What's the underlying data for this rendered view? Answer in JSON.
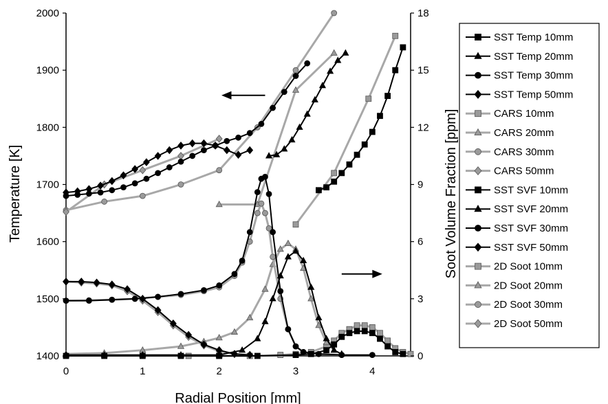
{
  "chart_data": {
    "type": "line",
    "xlabel": "Radial Position [mm]",
    "ylabel_left": "Temperature [K]",
    "ylabel_right": "Soot Volume Fraction [ppm]",
    "xlim": [
      0,
      4.5
    ],
    "ylim_left": [
      1400,
      2000
    ],
    "ylim_right": [
      0,
      18
    ],
    "x_ticks": [
      "0",
      "1",
      "2",
      "3",
      "4"
    ],
    "y_left_ticks": [
      "1400",
      "1500",
      "1600",
      "1700",
      "1800",
      "1900",
      "2000"
    ],
    "y_right_ticks": [
      "0",
      "3",
      "6",
      "9",
      "12",
      "15",
      "18"
    ],
    "legend_position": "right",
    "arrows": [
      {
        "direction": "left",
        "axis": "temperature"
      },
      {
        "direction": "right",
        "axis": "soot"
      }
    ],
    "series": [
      {
        "name": "SST Temp 10mm",
        "axis": "left",
        "color": "#000000",
        "marker": "square",
        "x": [
          3.3,
          3.4,
          3.5,
          3.6,
          3.7,
          3.8,
          3.9,
          4.0,
          4.1,
          4.2,
          4.3,
          4.4
        ],
        "y": [
          1690,
          1695,
          1705,
          1720,
          1735,
          1752,
          1770,
          1792,
          1820,
          1855,
          1900,
          1940
        ]
      },
      {
        "name": "SST Temp 20mm",
        "axis": "left",
        "color": "#000000",
        "marker": "triangle",
        "x": [
          2.65,
          2.75,
          2.85,
          2.95,
          3.05,
          3.15,
          3.25,
          3.35,
          3.45,
          3.55,
          3.65
        ],
        "y": [
          1750,
          1752,
          1762,
          1778,
          1800,
          1823,
          1848,
          1873,
          1898,
          1917,
          1930
        ]
      },
      {
        "name": "SST Temp 30mm",
        "axis": "left",
        "color": "#000000",
        "marker": "circle",
        "x": [
          0,
          0.15,
          0.3,
          0.45,
          0.6,
          0.75,
          0.9,
          1.05,
          1.2,
          1.35,
          1.5,
          1.65,
          1.8,
          1.95,
          2.1,
          2.25,
          2.4,
          2.55,
          2.7,
          2.85,
          3.0,
          3.15
        ],
        "y": [
          1680,
          1682,
          1684,
          1686,
          1690,
          1695,
          1702,
          1710,
          1720,
          1730,
          1740,
          1750,
          1760,
          1768,
          1776,
          1782,
          1790,
          1806,
          1834,
          1862,
          1890,
          1912
        ]
      },
      {
        "name": "SST Temp 50mm",
        "axis": "left",
        "color": "#000000",
        "marker": "diamond",
        "x": [
          0,
          0.15,
          0.3,
          0.45,
          0.6,
          0.75,
          0.9,
          1.05,
          1.2,
          1.35,
          1.5,
          1.65,
          1.8,
          1.95,
          2.1,
          2.25,
          2.4
        ],
        "y": [
          1686,
          1688,
          1692,
          1698,
          1706,
          1716,
          1727,
          1739,
          1750,
          1760,
          1768,
          1772,
          1772,
          1768,
          1760,
          1752,
          1760
        ]
      },
      {
        "name": "CARS 10mm",
        "axis": "left",
        "color": "#9a9a9a",
        "marker": "square",
        "x": [
          3.0,
          3.5,
          3.95,
          4.3
        ],
        "y": [
          1630,
          1720,
          1850,
          1960
        ]
      },
      {
        "name": "CARS 20mm",
        "axis": "left",
        "color": "#9a9a9a",
        "marker": "triangle",
        "x": [
          2.0,
          2.5,
          3.0,
          3.5
        ],
        "y": [
          1665,
          1665,
          1865,
          1930
        ]
      },
      {
        "name": "CARS 30mm",
        "axis": "left",
        "color": "#9a9a9a",
        "marker": "circle",
        "x": [
          0,
          0.5,
          1.0,
          1.5,
          2.0,
          2.5,
          3.0,
          3.5
        ],
        "y": [
          1655,
          1670,
          1680,
          1700,
          1725,
          1800,
          1900,
          2000
        ]
      },
      {
        "name": "CARS 50mm",
        "axis": "left",
        "color": "#9a9a9a",
        "marker": "diamond",
        "x": [
          0,
          0.5,
          1.0,
          1.5,
          2.0
        ],
        "y": [
          1652,
          1700,
          1725,
          1750,
          1780
        ]
      },
      {
        "name": "SST SVF 10mm",
        "axis": "right",
        "color": "#000000",
        "marker": "square",
        "x": [
          0,
          0.5,
          1.0,
          1.5,
          2.0,
          2.5,
          3.0,
          3.2,
          3.4,
          3.5,
          3.6,
          3.7,
          3.8,
          3.9,
          4.0,
          4.1,
          4.2,
          4.3,
          4.4
        ],
        "y": [
          0,
          0,
          0,
          0,
          0,
          0,
          0.05,
          0.1,
          0.3,
          0.6,
          1.0,
          1.2,
          1.3,
          1.3,
          1.2,
          0.9,
          0.5,
          0.2,
          0.1
        ]
      },
      {
        "name": "SST SVF 20mm",
        "axis": "right",
        "color": "#000000",
        "marker": "triangle",
        "x": [
          0,
          0.5,
          1.0,
          1.5,
          2.0,
          2.3,
          2.5,
          2.6,
          2.7,
          2.8,
          2.9,
          3.0,
          3.1,
          3.2,
          3.3,
          3.4,
          3.5,
          3.6
        ],
        "y": [
          0.05,
          0.05,
          0.05,
          0.05,
          0.05,
          0.3,
          0.9,
          1.8,
          3.0,
          4.2,
          5.2,
          5.5,
          5.0,
          3.6,
          2.0,
          0.9,
          0.3,
          0.1
        ]
      },
      {
        "name": "SST SVF 30mm",
        "axis": "right",
        "color": "#000000",
        "marker": "circle",
        "x": [
          0,
          0.3,
          0.6,
          0.9,
          1.2,
          1.5,
          1.8,
          2.0,
          2.2,
          2.3,
          2.4,
          2.5,
          2.55,
          2.6,
          2.65,
          2.7,
          2.8,
          2.9,
          3.0,
          3.1,
          3.3,
          3.6,
          4.0
        ],
        "y": [
          2.9,
          2.9,
          2.95,
          3.0,
          3.1,
          3.25,
          3.45,
          3.7,
          4.3,
          5.0,
          6.5,
          8.6,
          9.3,
          9.4,
          8.5,
          6.5,
          3.4,
          1.4,
          0.5,
          0.2,
          0.1,
          0.05,
          0.05
        ]
      },
      {
        "name": "SST SVF 50mm",
        "axis": "right",
        "color": "#000000",
        "marker": "diamond",
        "x": [
          0,
          0.2,
          0.4,
          0.6,
          0.8,
          1.0,
          1.2,
          1.4,
          1.6,
          1.8,
          2.0,
          2.2,
          2.4
        ],
        "y": [
          3.9,
          3.9,
          3.85,
          3.75,
          3.5,
          3.0,
          2.4,
          1.7,
          1.1,
          0.6,
          0.3,
          0.1,
          0.05
        ]
      },
      {
        "name": "2D Soot 10mm",
        "axis": "right",
        "color": "#9a9a9a",
        "marker": "square",
        "x": [
          1.6,
          2.0,
          2.4,
          2.8,
          3.0,
          3.2,
          3.4,
          3.5,
          3.6,
          3.7,
          3.8,
          3.9,
          4.0,
          4.1,
          4.2,
          4.3,
          4.4,
          4.5
        ],
        "y": [
          0,
          0,
          0,
          0.05,
          0.1,
          0.2,
          0.5,
          0.8,
          1.2,
          1.4,
          1.6,
          1.6,
          1.5,
          1.2,
          0.8,
          0.4,
          0.2,
          0.1
        ]
      },
      {
        "name": "2D Soot 20mm",
        "axis": "right",
        "color": "#9a9a9a",
        "marker": "triangle",
        "x": [
          0,
          0.5,
          1.0,
          1.5,
          1.8,
          2.0,
          2.2,
          2.4,
          2.6,
          2.7,
          2.8,
          2.9,
          3.0,
          3.1,
          3.2,
          3.3,
          3.4,
          3.5
        ],
        "y": [
          0.1,
          0.15,
          0.3,
          0.5,
          0.75,
          0.95,
          1.25,
          2.0,
          3.5,
          4.8,
          5.6,
          5.9,
          5.6,
          4.6,
          3.0,
          1.6,
          0.7,
          0.3
        ]
      },
      {
        "name": "2D Soot 30mm",
        "axis": "right",
        "color": "#9a9a9a",
        "marker": "circle",
        "x": [
          0,
          0.3,
          0.6,
          0.9,
          1.2,
          1.5,
          1.8,
          2.0,
          2.2,
          2.3,
          2.4,
          2.5,
          2.55,
          2.6,
          2.65,
          2.7,
          2.8,
          2.9,
          3.0,
          3.1,
          3.3,
          3.6
        ],
        "y": [
          2.9,
          2.92,
          2.95,
          3.0,
          3.1,
          3.2,
          3.4,
          3.6,
          4.2,
          4.9,
          6.0,
          7.5,
          8.0,
          7.5,
          6.7,
          5.2,
          3.0,
          1.4,
          0.5,
          0.2,
          0.1,
          0.05
        ]
      },
      {
        "name": "2D Soot 50mm",
        "axis": "right",
        "color": "#9a9a9a",
        "marker": "diamond",
        "x": [
          0,
          0.2,
          0.4,
          0.6,
          0.8,
          1.0,
          1.2,
          1.4,
          1.6,
          1.8,
          2.0,
          2.2,
          2.4
        ],
        "y": [
          3.9,
          3.85,
          3.8,
          3.7,
          3.4,
          2.9,
          2.3,
          1.6,
          1.0,
          0.55,
          0.25,
          0.1,
          0.05
        ]
      }
    ]
  }
}
